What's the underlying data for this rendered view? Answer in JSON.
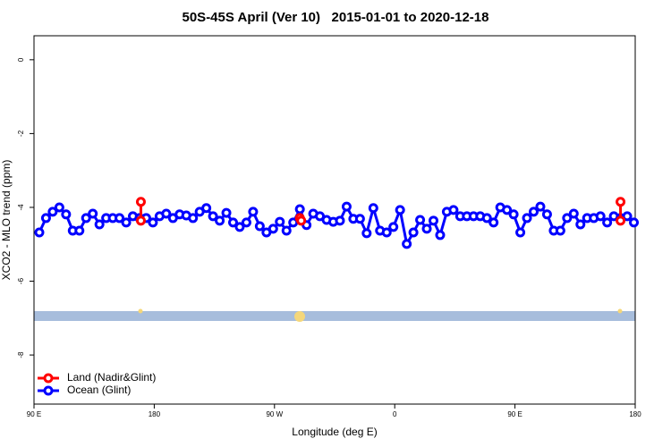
{
  "chart_data": {
    "type": "line",
    "title": "50S-45S April (Ver 10)   2015-01-01 to 2020-12-18",
    "x_label": "Longitude (deg E)",
    "y_label": "XCO2 - MLO trend (ppm)",
    "xlim": [
      90,
      540
    ],
    "ylim": [
      -9.33,
      0.65
    ],
    "xticks": [
      {
        "value": 90,
        "label": "90 E"
      },
      180,
      {
        "value": 270,
        "label": "90 W"
      },
      {
        "value": 360,
        "label": "0"
      },
      {
        "value": 450,
        "label": "90 E"
      },
      {
        "value": 540,
        "label": "180"
      }
    ],
    "yticks": [
      0,
      -2,
      -4,
      -6,
      -8
    ],
    "legend": "bottomleft",
    "series": [
      {
        "name": "Land (Nadir&Glint)",
        "color": "#ff0000",
        "x": [
          170,
          170,
          null,
          289,
          290,
          null,
          529,
          529
        ],
        "values": [
          -4.36,
          -3.85,
          null,
          -4.29,
          -4.36,
          null,
          -4.36,
          -3.85
        ]
      },
      {
        "name": "Ocean (Glint)",
        "color": "#0000ff",
        "x": [
          94,
          99,
          104,
          109,
          114,
          119,
          124,
          129,
          134,
          139,
          144,
          149,
          154,
          159,
          164,
          169,
          174,
          179,
          184,
          189,
          194,
          199,
          204,
          209,
          214,
          219,
          224,
          229,
          234,
          239,
          244,
          249,
          254,
          259,
          264,
          269,
          274,
          279,
          284,
          289,
          294,
          299,
          304,
          309,
          314,
          319,
          324,
          329,
          334,
          339,
          344,
          349,
          354,
          359,
          364,
          369,
          374,
          379,
          384,
          389,
          394,
          399,
          404,
          409,
          414,
          419,
          424,
          429,
          434,
          439,
          444,
          449,
          454,
          459,
          464,
          469,
          474,
          479,
          484,
          489,
          494,
          499,
          504,
          509,
          514,
          519,
          524,
          529,
          534,
          539
        ],
        "values": [
          -4.68,
          -4.29,
          -4.12,
          -4.0,
          -4.19,
          -4.63,
          -4.63,
          -4.29,
          -4.17,
          -4.46,
          -4.29,
          -4.29,
          -4.29,
          -4.41,
          -4.24,
          -4.29,
          -4.29,
          -4.41,
          -4.24,
          -4.17,
          -4.29,
          -4.19,
          -4.22,
          -4.29,
          -4.12,
          -4.02,
          -4.24,
          -4.36,
          -4.15,
          -4.41,
          -4.53,
          -4.41,
          -4.12,
          -4.51,
          -4.68,
          -4.58,
          -4.39,
          -4.63,
          -4.41,
          -4.05,
          -4.48,
          -4.17,
          -4.24,
          -4.34,
          -4.39,
          -4.36,
          -3.98,
          -4.31,
          -4.31,
          -4.7,
          -4.02,
          -4.63,
          -4.68,
          -4.53,
          -4.07,
          -4.99,
          -4.68,
          -4.34,
          -4.58,
          -4.36,
          -4.75,
          -4.12,
          -4.07,
          -4.24,
          -4.24,
          -4.24,
          -4.24,
          -4.29,
          -4.41,
          -4.0,
          -4.07,
          -4.19,
          -4.68,
          -4.29,
          -4.12,
          -3.98,
          -4.19,
          -4.63,
          -4.63,
          -4.29,
          -4.17,
          -4.46,
          -4.29,
          -4.29,
          -4.24,
          -4.41,
          -4.24,
          -4.29,
          -4.24,
          -4.41
        ]
      }
    ]
  }
}
